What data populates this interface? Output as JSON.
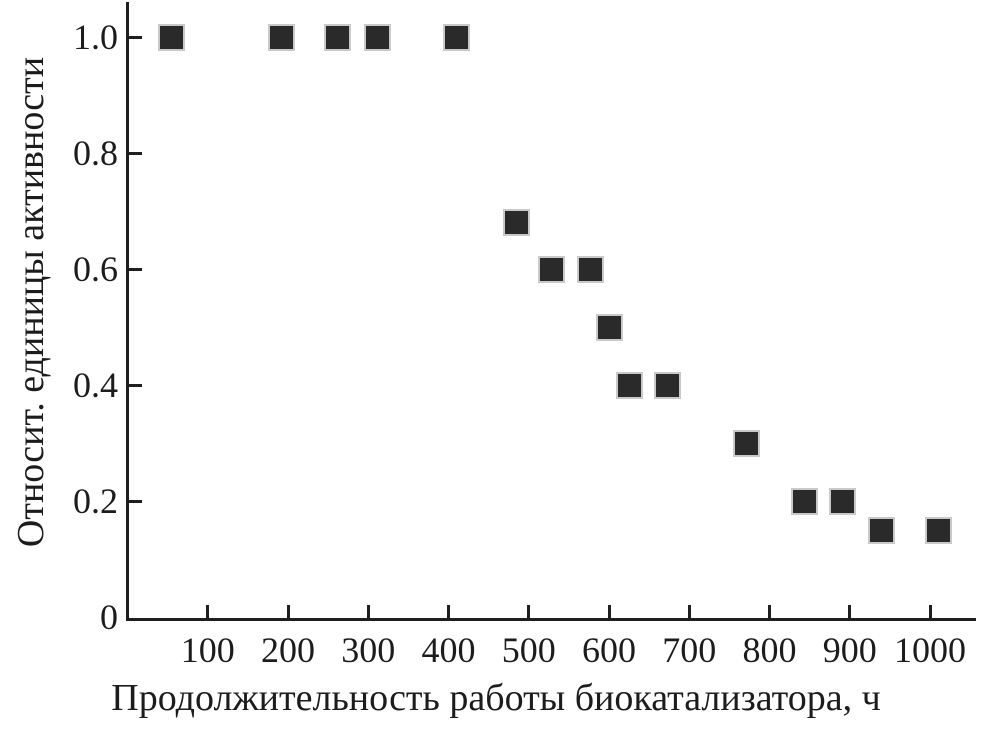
{
  "chart_data": {
    "type": "scatter",
    "title": "",
    "xlabel": "Продолжительность работы биокатализатора, ч",
    "ylabel": "Относит. единицы активности",
    "xlim": [
      0,
      1057
    ],
    "ylim": [
      0,
      1.06
    ],
    "x_ticks": [
      100,
      200,
      300,
      400,
      500,
      600,
      700,
      800,
      900,
      1000
    ],
    "y_ticks": [
      0,
      0.2,
      0.4,
      0.6,
      0.8,
      1.0
    ],
    "y_tick_labels": [
      "0",
      "0.2",
      "0.4",
      "0.6",
      "0.8",
      "1.0"
    ],
    "grid": false,
    "legend": "none",
    "marker": {
      "shape": "square",
      "fill": "#2a2a2a",
      "halo": "#c9c9c9"
    },
    "series": [
      {
        "name": "relative-activity",
        "points": [
          [
            55,
            1.0
          ],
          [
            192,
            1.0
          ],
          [
            262,
            1.0
          ],
          [
            312,
            1.0
          ],
          [
            410,
            1.0
          ],
          [
            485,
            0.68
          ],
          [
            528,
            0.6
          ],
          [
            577,
            0.6
          ],
          [
            600,
            0.5
          ],
          [
            626,
            0.4
          ],
          [
            673,
            0.4
          ],
          [
            771,
            0.3
          ],
          [
            843,
            0.2
          ],
          [
            891,
            0.2
          ],
          [
            939,
            0.15
          ],
          [
            1011,
            0.15
          ]
        ]
      }
    ]
  },
  "colors": {
    "background": "#ffffff",
    "axis": "#1f1f1f",
    "text": "#1c1c1c",
    "marker_fill": "#2a2a2a",
    "marker_halo": "#c9c9c9"
  }
}
